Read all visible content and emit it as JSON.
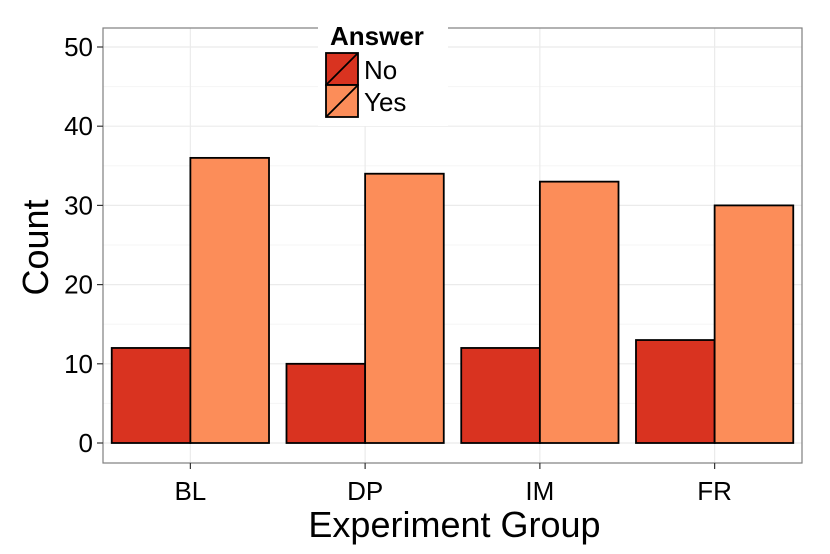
{
  "chart_data": {
    "type": "bar",
    "categories": [
      "BL",
      "DP",
      "IM",
      "FR"
    ],
    "series": [
      {
        "name": "No",
        "values": [
          12,
          10,
          12,
          13
        ],
        "color": "#d93320"
      },
      {
        "name": "Yes",
        "values": [
          36,
          34,
          33,
          30
        ],
        "color": "#fc8d59"
      }
    ],
    "xlabel": "Experiment Group",
    "ylabel": "Count",
    "ylim": [
      0,
      52
    ],
    "yticks": [
      0,
      10,
      20,
      30,
      40,
      50
    ],
    "legend": {
      "title": "Answer",
      "placement": "top-center"
    },
    "grid": true,
    "colors": {
      "panel_border": "#7f7f7f",
      "grid_major": "#ebebeb",
      "grid_minor": "#f5f5f5",
      "bar_stroke": "#000000"
    }
  }
}
